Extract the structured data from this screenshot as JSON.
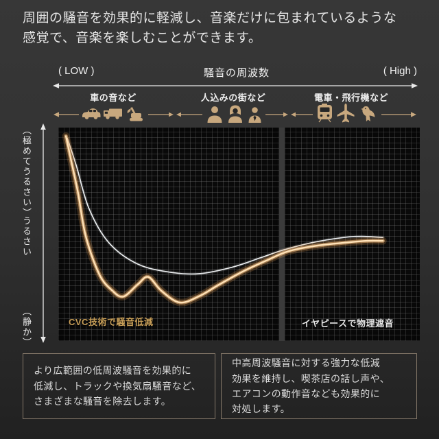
{
  "intro": {
    "text": "周囲の騒音を効果的に軽減し、音楽だけに包まれているような\n感覚で、音楽を楽しむことができます。"
  },
  "boxes": {
    "left": "より広範囲の低周波騒音を効果的に\n低減し、トラックや換気扇騒音など、\nさまざまな騒音を除去します。",
    "right": "中高周波騒音に対する強力な低減\n効果を維持し、喫茶店の話し声や、\nエアコンの動作音なども効果的に\n対処します。"
  },
  "colors": {
    "gold": "#c8a87e",
    "gold_text": "#c79e58",
    "white_curve": "#eceff1",
    "gold_curve": "#f2b97e",
    "panel_bg": "#0a0a0a",
    "grid": "#2b2b2b"
  },
  "icons": [
    "car-icon",
    "truck-icon",
    "excavator-icon",
    "person-icon",
    "woman-icon",
    "businessman-icon",
    "train-icon",
    "airplane-icon",
    "bird-icon"
  ],
  "chart_data": {
    "type": "line",
    "grid": true,
    "legend": false,
    "x_axis": {
      "title": "騒音の周波数",
      "min_label": "( LOW )",
      "max_label": "( High )",
      "categories": [
        "車の音など",
        "人込みの街など",
        "電車・飛行機など"
      ]
    },
    "y_axis": {
      "labels": [
        "（極めてうるさい）",
        "うるさい",
        "（静か）"
      ]
    },
    "annotations": [
      "CVC技術で騒音低減",
      "イヤピースで物理遮音"
    ],
    "panels": [
      {
        "label": "CVC技術で騒音低減",
        "x_span_pct": [
          0,
          61.1
        ]
      },
      {
        "label": "イヤピースで物理遮音",
        "x_span_pct": [
          62.6,
          100
        ]
      }
    ],
    "series": [
      {
        "name": "white-curve",
        "color": "#eceff1",
        "glow": [
          {
            "w": 5,
            "c": "rgba(255,255,255,0.10)"
          },
          {
            "w": 1.7,
            "c": "#eceff1"
          }
        ],
        "points": [
          [
            2.5,
            95
          ],
          [
            5,
            82
          ],
          [
            8.5,
            62
          ],
          [
            14,
            46
          ],
          [
            22,
            36
          ],
          [
            31,
            32.2
          ],
          [
            39,
            31.5
          ],
          [
            48,
            34.5
          ],
          [
            56,
            39
          ],
          [
            62,
            42.5
          ],
          [
            70,
            46
          ],
          [
            79,
            48.5
          ],
          [
            84,
            49
          ],
          [
            89.8,
            48.5
          ]
        ]
      },
      {
        "name": "gold-curve",
        "color": "#f2b97e",
        "glow": [
          {
            "w": 11,
            "c": "rgba(232,158,82,0.22)"
          },
          {
            "w": 5.5,
            "c": "rgba(244,184,118,0.55)"
          },
          {
            "w": 2.4,
            "c": "#ffe2b8"
          }
        ],
        "points": [
          [
            2.1,
            96
          ],
          [
            3.5,
            85
          ],
          [
            5.5,
            69
          ],
          [
            7.6,
            49
          ],
          [
            11.4,
            31
          ],
          [
            15,
            23.5
          ],
          [
            18,
            20.8
          ],
          [
            22,
            26.5
          ],
          [
            24.9,
            30
          ],
          [
            28.5,
            23.5
          ],
          [
            33.6,
            18
          ],
          [
            39,
            21
          ],
          [
            44.6,
            26.5
          ],
          [
            51,
            32.5
          ],
          [
            58,
            38
          ],
          [
            63.6,
            42
          ],
          [
            71,
            44.5
          ],
          [
            79,
            46
          ],
          [
            85.4,
            46.9
          ],
          [
            89.8,
            46.9
          ]
        ]
      }
    ]
  }
}
